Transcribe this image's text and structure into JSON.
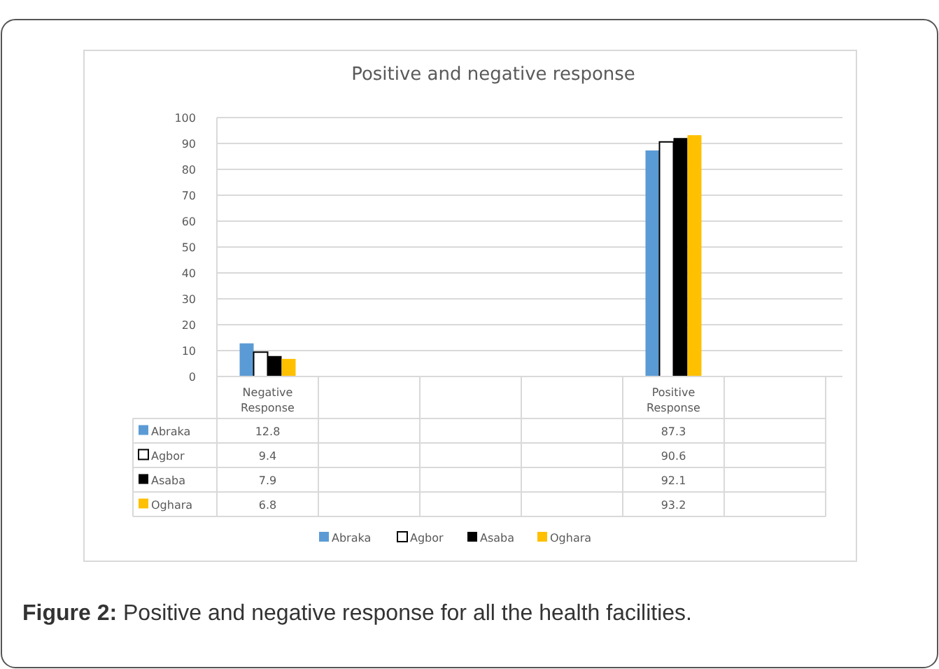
{
  "chart_data": {
    "type": "bar",
    "title": "Positive and negative response",
    "categories": [
      "Negative Response",
      null,
      null,
      null,
      "Positive Response",
      null
    ],
    "series": [
      {
        "name": "Abraka",
        "color": "#5b9bd5",
        "values": [
          12.8,
          null,
          null,
          null,
          87.3,
          null
        ]
      },
      {
        "name": "Agbor",
        "color": "#ffffff",
        "values": [
          9.4,
          null,
          null,
          null,
          90.6,
          null
        ]
      },
      {
        "name": "Asaba",
        "color": "#000000",
        "values": [
          7.9,
          null,
          null,
          null,
          92.1,
          null
        ]
      },
      {
        "name": "Oghara",
        "color": "#ffc000",
        "values": [
          6.8,
          null,
          null,
          null,
          93.2,
          null
        ]
      }
    ],
    "ylim": [
      0,
      100
    ],
    "yticks": [
      0,
      10,
      20,
      30,
      40,
      50,
      60,
      70,
      80,
      90,
      100
    ],
    "grid": "y",
    "legend": "bottom",
    "data_labels": true,
    "annotations": [
      "Figure 2: Positive and negative response for all the health facilities."
    ]
  }
}
